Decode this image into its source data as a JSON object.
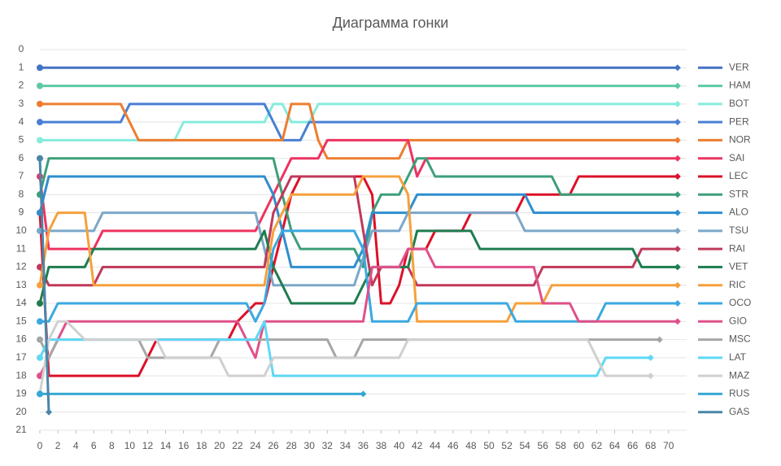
{
  "chart_data": {
    "type": "line",
    "title": "Диаграмма гонки",
    "xlim": [
      0,
      72
    ],
    "ylim": [
      21,
      0
    ],
    "grid": true,
    "legend": "right",
    "xticks": [
      0,
      2,
      4,
      6,
      8,
      10,
      12,
      14,
      16,
      18,
      20,
      22,
      24,
      26,
      28,
      30,
      32,
      34,
      36,
      38,
      40,
      42,
      44,
      46,
      48,
      50,
      52,
      54,
      56,
      58,
      60,
      62,
      64,
      66,
      68,
      70
    ],
    "yticks": [
      0,
      1,
      2,
      3,
      4,
      5,
      6,
      7,
      8,
      9,
      10,
      11,
      12,
      13,
      14,
      15,
      16,
      17,
      18,
      19,
      20,
      21
    ],
    "series": [
      {
        "name": "VER",
        "color": "#4472c4",
        "x": [
          0,
          71
        ],
        "values": [
          1,
          1
        ]
      },
      {
        "name": "HAM",
        "color": "#5ec8a6",
        "x": [
          0,
          71
        ],
        "values": [
          2,
          2
        ]
      },
      {
        "name": "BOT",
        "color": "#86ecdc",
        "x": [
          0,
          15,
          16,
          25,
          26,
          27,
          28,
          30,
          31,
          71
        ],
        "values": [
          5,
          5,
          4,
          4,
          3,
          3,
          4,
          4,
          3,
          3
        ]
      },
      {
        "name": "PER",
        "color": "#4a7fd4",
        "x": [
          0,
          9,
          10,
          25,
          26,
          27,
          29,
          30,
          71
        ],
        "values": [
          4,
          4,
          3,
          3,
          4,
          5,
          5,
          4,
          4
        ]
      },
      {
        "name": "NOR",
        "color": "#ed7d31",
        "x": [
          0,
          9,
          11,
          27,
          28,
          30,
          31,
          32,
          40,
          41,
          71
        ],
        "values": [
          3,
          3,
          5,
          5,
          3,
          3,
          5,
          6,
          6,
          5,
          5
        ]
      },
      {
        "name": "SAI",
        "color": "#ee3360",
        "x": [
          0,
          1,
          6,
          7,
          24,
          25,
          27,
          28,
          31,
          32,
          41,
          42,
          43,
          71
        ],
        "values": [
          7,
          11,
          11,
          10,
          10,
          9,
          7,
          6,
          6,
          5,
          5,
          7,
          6,
          6
        ]
      },
      {
        "name": "LEC",
        "color": "#dd1028",
        "x": [
          0,
          1,
          11,
          12,
          13,
          21,
          22,
          24,
          25,
          26,
          27,
          28,
          29,
          36,
          37,
          38,
          39,
          40,
          41,
          43,
          44,
          47,
          48,
          53,
          54,
          59,
          60,
          71
        ],
        "values": [
          9,
          18,
          18,
          17,
          16,
          16,
          15,
          14,
          14,
          12,
          10,
          8,
          7,
          7,
          8,
          14,
          14,
          13,
          11,
          11,
          10,
          10,
          9,
          9,
          8,
          8,
          7,
          7
        ]
      },
      {
        "name": "STR",
        "color": "#3c9f7a",
        "x": [
          0,
          1,
          26,
          28,
          29,
          35,
          36,
          37,
          38,
          40,
          41,
          42,
          43,
          44,
          57,
          58,
          71
        ],
        "values": [
          8,
          6,
          6,
          10,
          11,
          11,
          12,
          9,
          8,
          8,
          7,
          6,
          6,
          7,
          7,
          8,
          8
        ]
      },
      {
        "name": "ALO",
        "color": "#2e8ecf",
        "x": [
          0,
          1,
          25,
          26,
          27,
          28,
          35,
          36,
          37,
          41,
          42,
          54,
          55,
          71
        ],
        "values": [
          9,
          7,
          7,
          8,
          10,
          12,
          12,
          11,
          9,
          9,
          8,
          8,
          9,
          9
        ]
      },
      {
        "name": "TSU",
        "color": "#7ba7c9",
        "x": [
          0,
          6,
          7,
          24,
          25,
          26,
          35,
          37,
          40,
          41,
          53,
          54,
          71
        ],
        "values": [
          10,
          10,
          9,
          9,
          11,
          13,
          13,
          10,
          10,
          9,
          9,
          10,
          10
        ]
      },
      {
        "name": "RAI",
        "color": "#c0395a",
        "x": [
          0,
          1,
          6,
          7,
          25,
          26,
          27,
          28,
          35,
          37,
          38,
          41,
          42,
          55,
          56,
          66,
          67,
          71
        ],
        "values": [
          12,
          13,
          13,
          12,
          12,
          9,
          8,
          7,
          7,
          13,
          12,
          12,
          13,
          13,
          12,
          12,
          11,
          11
        ]
      },
      {
        "name": "VET",
        "color": "#1e7d50",
        "x": [
          0,
          1,
          5,
          6,
          24,
          25,
          26,
          27,
          28,
          35,
          36,
          37,
          41,
          42,
          48,
          49,
          66,
          67,
          71
        ],
        "values": [
          14,
          12,
          12,
          11,
          11,
          10,
          12,
          13,
          14,
          14,
          13,
          12,
          12,
          10,
          10,
          11,
          11,
          12,
          12
        ]
      },
      {
        "name": "RIC",
        "color": "#f6a03c",
        "x": [
          0,
          1,
          2,
          5,
          6,
          25,
          26,
          27,
          28,
          35,
          36,
          40,
          41,
          42,
          52,
          53,
          56,
          57,
          71
        ],
        "values": [
          13,
          10,
          9,
          9,
          13,
          13,
          10,
          9,
          8,
          8,
          7,
          7,
          8,
          15,
          15,
          14,
          14,
          13,
          13
        ]
      },
      {
        "name": "OCO",
        "color": "#3aa8e0",
        "x": [
          0,
          1,
          2,
          23,
          24,
          25,
          26,
          27,
          35,
          36,
          37,
          41,
          42,
          52,
          53,
          62,
          63,
          71
        ],
        "values": [
          15,
          15,
          14,
          14,
          15,
          14,
          11,
          10,
          10,
          11,
          15,
          15,
          14,
          14,
          15,
          15,
          14,
          14
        ]
      },
      {
        "name": "GIO",
        "color": "#e0508a",
        "x": [
          0,
          1,
          3,
          22,
          23,
          24,
          25,
          36,
          37,
          40,
          41,
          43,
          44,
          55,
          56,
          59,
          60,
          71
        ],
        "values": [
          18,
          17,
          15,
          15,
          16,
          17,
          15,
          15,
          12,
          12,
          11,
          11,
          12,
          12,
          14,
          14,
          15,
          15
        ]
      },
      {
        "name": "MSC",
        "color": "#a6a6a6",
        "x": [
          0,
          1,
          2,
          11,
          12,
          19,
          20,
          32,
          33,
          35,
          36,
          69
        ],
        "values": [
          16,
          17,
          16,
          16,
          17,
          17,
          16,
          16,
          17,
          17,
          16,
          16
        ]
      },
      {
        "name": "LAT",
        "color": "#5fd8f5",
        "x": [
          0,
          1,
          24,
          25,
          26,
          36,
          62,
          63,
          68
        ],
        "values": [
          17,
          16,
          16,
          15,
          18,
          18,
          18,
          17,
          17
        ]
      },
      {
        "name": "MAZ",
        "color": "#d0d0d0",
        "x": [
          0,
          1,
          2,
          3,
          5,
          13,
          14,
          20,
          21,
          25,
          26,
          40,
          41,
          61,
          62,
          63,
          68
        ],
        "values": [
          19,
          16,
          15,
          15,
          16,
          16,
          17,
          17,
          18,
          18,
          17,
          17,
          16,
          16,
          17,
          18,
          18
        ]
      },
      {
        "name": "RUS",
        "color": "#36a8d4",
        "x": [
          0,
          1,
          36
        ],
        "values": [
          19,
          19,
          19
        ]
      },
      {
        "name": "GAS",
        "color": "#4a86a8",
        "x": [
          0,
          1
        ],
        "values": [
          6,
          20
        ]
      }
    ]
  }
}
